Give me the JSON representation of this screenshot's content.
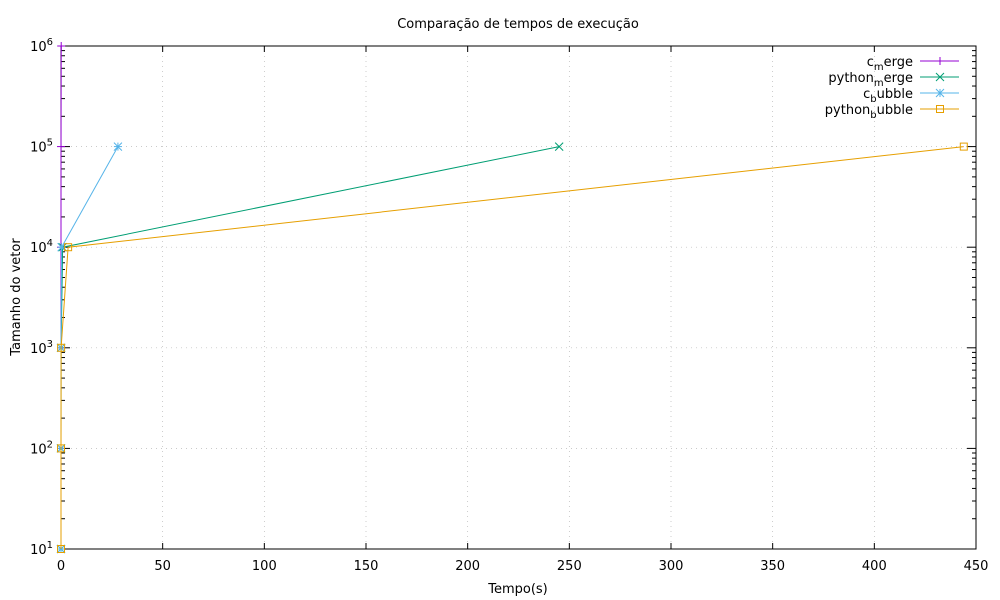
{
  "chart_data": {
    "type": "line",
    "title": "Comparação de tempos de execução",
    "xlabel": "Tempo(s)",
    "ylabel": "Tamanho do vetor",
    "xlim": [
      0,
      450
    ],
    "ylim": [
      10,
      1000000
    ],
    "yscale": "log",
    "grid": true,
    "legend_position": "top-right",
    "x_ticks": [
      0,
      50,
      100,
      150,
      200,
      250,
      300,
      350,
      400,
      450
    ],
    "y_ticks": [
      {
        "value": 10,
        "base": "10",
        "exp": "1"
      },
      {
        "value": 100,
        "base": "10",
        "exp": "2"
      },
      {
        "value": 1000,
        "base": "10",
        "exp": "3"
      },
      {
        "value": 10000,
        "base": "10",
        "exp": "4"
      },
      {
        "value": 100000,
        "base": "10",
        "exp": "5"
      },
      {
        "value": 1000000,
        "base": "10",
        "exp": "6"
      }
    ],
    "series": [
      {
        "name": "c_merge",
        "legend_main": "c",
        "legend_sub": "m",
        "legend_rest": "erge",
        "color": "#9400d3",
        "marker": "plus",
        "x": [
          0.0,
          0.0,
          0.0,
          0.001,
          0.01,
          0.1
        ],
        "y": [
          10,
          100,
          1000,
          10000,
          100000,
          1000000
        ]
      },
      {
        "name": "python_merge",
        "legend_main": "python",
        "legend_sub": "m",
        "legend_rest": "erge",
        "color": "#009e73",
        "marker": "cross",
        "x": [
          0.0,
          0.0,
          0.05,
          0.8,
          245
        ],
        "y": [
          10,
          100,
          1000,
          10000,
          100000
        ]
      },
      {
        "name": "c_bubble",
        "legend_main": "c",
        "legend_sub": "b",
        "legend_rest": "ubble",
        "color": "#56b4e9",
        "marker": "star",
        "x": [
          0.0,
          0.0,
          0.0,
          0.3,
          28
        ],
        "y": [
          10,
          100,
          1000,
          10000,
          100000
        ]
      },
      {
        "name": "python_bubble",
        "legend_main": "python",
        "legend_sub": "b",
        "legend_rest": "ubble",
        "color": "#e69f00",
        "marker": "square",
        "x": [
          0.0,
          0.0,
          0.05,
          3.5,
          444
        ],
        "y": [
          10,
          100,
          1000,
          10000,
          100000
        ]
      }
    ]
  }
}
